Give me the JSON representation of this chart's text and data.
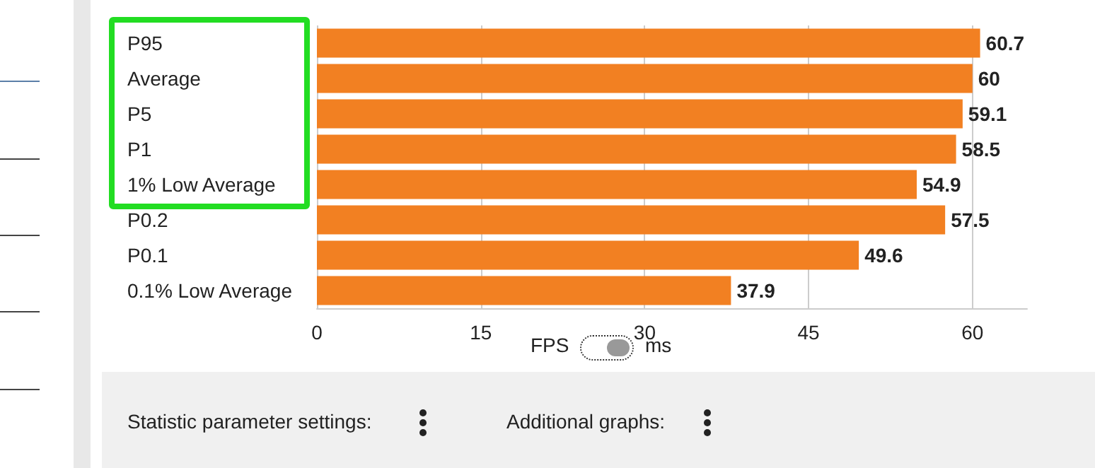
{
  "chart_data": {
    "type": "bar",
    "orientation": "horizontal",
    "categories": [
      "P95",
      "Average",
      "P5",
      "P1",
      "1% Low Average",
      "P0.2",
      "P0.1",
      "0.1% Low Average"
    ],
    "values": [
      60.7,
      60,
      59.1,
      58.5,
      54.9,
      57.5,
      49.6,
      37.9
    ],
    "color": "#f28022",
    "xlim": [
      0,
      65
    ],
    "xticks": [
      0,
      15,
      30,
      45,
      60
    ],
    "grid": "x",
    "data_labels": true,
    "annotations": [
      "FPS",
      "ms",
      "Statistic parameter settings:",
      "Additional graphs:"
    ]
  }
}
